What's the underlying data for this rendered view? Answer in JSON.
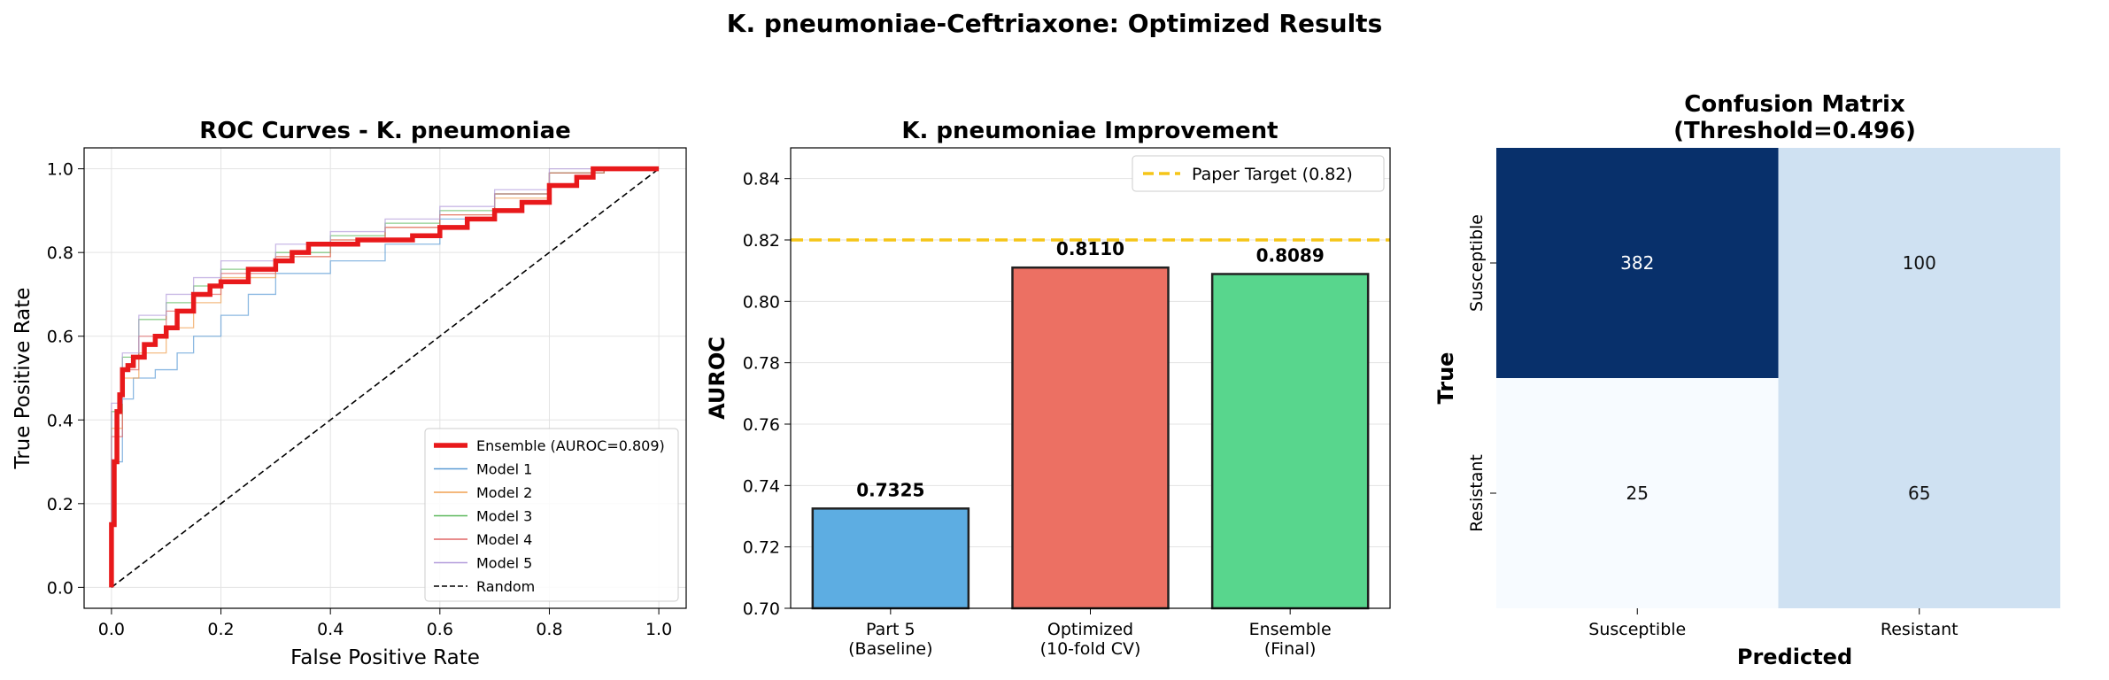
{
  "suptitle": "K. pneumoniae-Ceftriaxone: Optimized Results",
  "colors": {
    "ensemble": "#e8191b",
    "model1": "#5b9bd5",
    "model2": "#f0a050",
    "model3": "#5cb85c",
    "model4": "#e06666",
    "model5": "#b39ddb",
    "random": "#000000",
    "target": "#f5c518",
    "bar_baseline": "#5dade2",
    "bar_optimized": "#ec7063",
    "bar_ensemble": "#58d68d",
    "cm_dark": "#08306b",
    "cm_mid": "#cfe1f2",
    "cm_light": "#f7fbff"
  },
  "chart_data": [
    {
      "type": "line",
      "title": "ROC Curves - K. pneumoniae",
      "xlabel": "False Positive Rate",
      "ylabel": "True Positive Rate",
      "xlim": [
        -0.05,
        1.05
      ],
      "ylim": [
        -0.05,
        1.05
      ],
      "xticks": [
        "0.0",
        "0.2",
        "0.4",
        "0.6",
        "0.8",
        "1.0"
      ],
      "yticks": [
        "0.0",
        "0.2",
        "0.4",
        "0.6",
        "0.8",
        "1.0"
      ],
      "grid": true,
      "legend_position": "lower-right",
      "series": [
        {
          "name": "Ensemble (AUROC=0.809)",
          "key": "ensemble",
          "x": [
            0,
            0.005,
            0.01,
            0.015,
            0.02,
            0.03,
            0.04,
            0.06,
            0.08,
            0.1,
            0.12,
            0.15,
            0.18,
            0.2,
            0.22,
            0.25,
            0.3,
            0.33,
            0.36,
            0.4,
            0.45,
            0.5,
            0.55,
            0.6,
            0.65,
            0.7,
            0.75,
            0.8,
            0.85,
            0.88,
            0.9,
            1.0
          ],
          "y": [
            0,
            0.15,
            0.3,
            0.42,
            0.46,
            0.52,
            0.53,
            0.55,
            0.58,
            0.6,
            0.62,
            0.66,
            0.7,
            0.72,
            0.73,
            0.73,
            0.76,
            0.78,
            0.8,
            0.82,
            0.82,
            0.83,
            0.83,
            0.84,
            0.86,
            0.88,
            0.9,
            0.92,
            0.96,
            0.98,
            1.0,
            1.0
          ]
        },
        {
          "name": "Model 1",
          "key": "model1",
          "x": [
            0,
            0.02,
            0.04,
            0.08,
            0.12,
            0.15,
            0.2,
            0.25,
            0.3,
            0.4,
            0.5,
            0.6,
            0.7,
            0.8,
            0.9,
            1.0
          ],
          "y": [
            0,
            0.3,
            0.45,
            0.5,
            0.52,
            0.56,
            0.6,
            0.65,
            0.7,
            0.75,
            0.78,
            0.82,
            0.88,
            0.94,
            0.99,
            1.0
          ]
        },
        {
          "name": "Model 2",
          "key": "model2",
          "x": [
            0,
            0.02,
            0.05,
            0.1,
            0.15,
            0.2,
            0.3,
            0.4,
            0.5,
            0.6,
            0.7,
            0.8,
            0.9,
            1.0
          ],
          "y": [
            0,
            0.38,
            0.5,
            0.56,
            0.62,
            0.68,
            0.74,
            0.79,
            0.83,
            0.86,
            0.89,
            0.93,
            0.99,
            1.0
          ]
        },
        {
          "name": "Model 3",
          "key": "model3",
          "x": [
            0,
            0.02,
            0.05,
            0.1,
            0.15,
            0.2,
            0.3,
            0.4,
            0.5,
            0.6,
            0.7,
            0.8,
            0.9,
            1.0
          ],
          "y": [
            0,
            0.42,
            0.55,
            0.64,
            0.68,
            0.72,
            0.76,
            0.8,
            0.84,
            0.87,
            0.9,
            0.94,
            0.99,
            1.0
          ]
        },
        {
          "name": "Model 4",
          "key": "model4",
          "x": [
            0,
            0.02,
            0.05,
            0.1,
            0.15,
            0.2,
            0.3,
            0.4,
            0.5,
            0.6,
            0.7,
            0.8,
            0.9,
            1.0
          ],
          "y": [
            0,
            0.36,
            0.52,
            0.6,
            0.66,
            0.7,
            0.75,
            0.79,
            0.83,
            0.86,
            0.89,
            0.94,
            0.99,
            1.0
          ]
        },
        {
          "name": "Model 5",
          "key": "model5",
          "x": [
            0,
            0.02,
            0.05,
            0.1,
            0.15,
            0.2,
            0.3,
            0.4,
            0.5,
            0.6,
            0.7,
            0.8,
            0.9,
            1.0
          ],
          "y": [
            0,
            0.44,
            0.56,
            0.65,
            0.7,
            0.74,
            0.78,
            0.82,
            0.85,
            0.88,
            0.91,
            0.95,
            1.0,
            1.0
          ]
        },
        {
          "name": "Random",
          "key": "random",
          "x": [
            0,
            1
          ],
          "y": [
            0,
            1
          ]
        }
      ]
    },
    {
      "type": "bar",
      "title": "K. pneumoniae Improvement",
      "xlabel": "",
      "ylabel": "AUROC",
      "ylim": [
        0.7,
        0.85
      ],
      "yticks": [
        "0.70",
        "0.72",
        "0.74",
        "0.76",
        "0.78",
        "0.80",
        "0.82",
        "0.84"
      ],
      "categories": [
        [
          "Part 5",
          "(Baseline)"
        ],
        [
          "Optimized",
          "(10-fold CV)"
        ],
        [
          "Ensemble",
          "(Final)"
        ]
      ],
      "values": [
        0.7325,
        0.811,
        0.8089
      ],
      "value_labels": [
        "0.7325",
        "0.8110",
        "0.8089"
      ],
      "bar_color_keys": [
        "bar_baseline",
        "bar_optimized",
        "bar_ensemble"
      ],
      "reference_line": {
        "value": 0.82,
        "label": "Paper Target (0.82)"
      },
      "grid": true,
      "legend_position": "top-right"
    },
    {
      "type": "heatmap",
      "title": "Confusion Matrix",
      "subtitle": "(Threshold=0.496)",
      "xlabel": "Predicted",
      "ylabel": "True",
      "x_categories": [
        "Susceptible",
        "Resistant"
      ],
      "y_categories": [
        "Susceptible",
        "Resistant"
      ],
      "values": [
        [
          382,
          100
        ],
        [
          25,
          65
        ]
      ],
      "cell_color_keys": [
        [
          "cm_dark",
          "cm_mid"
        ],
        [
          "cm_light",
          "cm_mid"
        ]
      ]
    }
  ]
}
